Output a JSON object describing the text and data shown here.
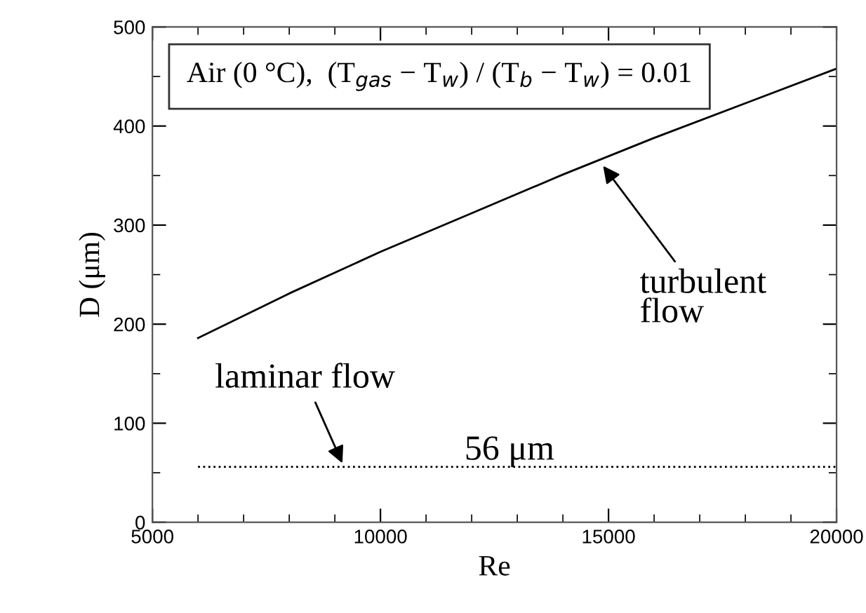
{
  "chart_data": {
    "type": "line",
    "xlabel": "Re",
    "ylabel": "D (μm)",
    "xlim": [
      5000,
      20000
    ],
    "xticks": [
      5000,
      10000,
      15000,
      20000
    ],
    "ylim": [
      0,
      500
    ],
    "yticks": [
      0,
      100,
      200,
      300,
      400,
      500
    ],
    "grid": false,
    "legend": false,
    "marker": "none",
    "series": [
      {
        "color": "#000000",
        "line_style": "solid",
        "x": [
          6000,
          8000,
          10000,
          12000,
          14000,
          16000,
          18000,
          20000
        ],
        "values": [
          186,
          231,
          273,
          312,
          351,
          388,
          423,
          458
        ]
      },
      {
        "color": "#000000",
        "line_style": "dotted",
        "x": [
          6000,
          20000
        ],
        "values": [
          56,
          56
        ]
      }
    ],
    "annotations": [
      "Air (0 °C),  (T$_{gas}$ − T$_{w}$) / (T$_{b}$ − T$_{w}$) = 0.01",
      {
        "text": "turbulent\nflow",
        "x": 14830,
        "y": 363
      },
      {
        "text": "laminar flow",
        "x": 9200,
        "y": 56
      },
      {
        "text": "56 μm",
        "x": 12400,
        "y": 56
      }
    ]
  }
}
